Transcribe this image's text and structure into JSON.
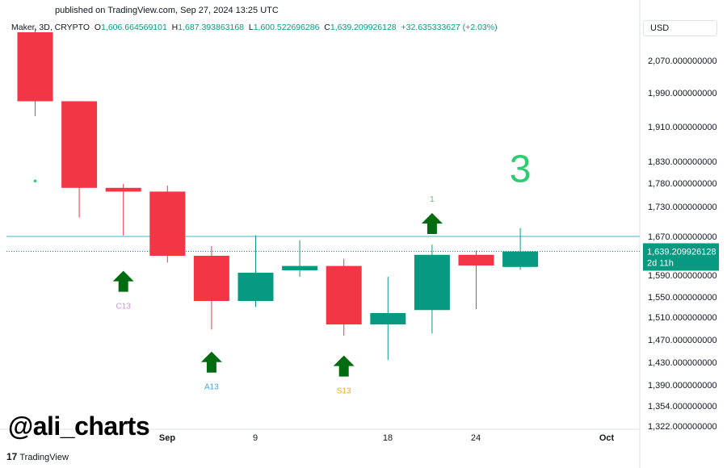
{
  "header": {
    "published": "published on TradingView.com, Sep 27, 2024 13:25 UTC"
  },
  "legend": {
    "symbol": "Maker, 3D, CRYPTO",
    "o_label": "O",
    "o": "1,606.664569101",
    "h_label": "H",
    "h": "1,687.393863168",
    "l_label": "L",
    "l": "1,600.522696286",
    "c_label": "C",
    "c": "1,639.209926128",
    "change": "+32.635333627 (+2.03%)"
  },
  "currency": "USD",
  "price_tag": {
    "price": "1,639.209926128",
    "countdown": "2d 11h",
    "color": "#089981"
  },
  "watermark": "@ali_charts",
  "logo": {
    "mark": "17",
    "text": "TradingView"
  },
  "colors": {
    "up": "#089981",
    "down": "#f23645",
    "arrow": "#006b0f",
    "hline": "#9fd8e6"
  },
  "chart_data": {
    "type": "candlestick",
    "x_ticks": [
      "Sep",
      "9",
      "18",
      "24",
      "Oct"
    ],
    "y_ticks": [
      "2,070.000000000",
      "1,990.000000000",
      "1,910.000000000",
      "1,830.000000000",
      "1,780.000000000",
      "1,730.000000000",
      "1,670.000000000",
      "1,590.000000000",
      "1,550.000000000",
      "1,510.000000000",
      "1,470.000000000",
      "1,430.000000000",
      "1,390.000000000",
      "1,354.000000000",
      "1,322.000000000"
    ],
    "horizontal_line": 1670,
    "last_price": 1639.21,
    "candles": [
      {
        "o": 2140,
        "h": 2150,
        "l": 1935,
        "c": 1970
      },
      {
        "o": 1970,
        "h": 1970,
        "l": 1708,
        "c": 1770
      },
      {
        "o": 1770,
        "h": 1778,
        "l": 1672,
        "c": 1762
      },
      {
        "o": 1762,
        "h": 1775,
        "l": 1616,
        "c": 1630
      },
      {
        "o": 1630,
        "h": 1650,
        "l": 1488,
        "c": 1542
      },
      {
        "o": 1542,
        "h": 1672,
        "l": 1530,
        "c": 1595
      },
      {
        "o": 1600,
        "h": 1662,
        "l": 1587,
        "c": 1609
      },
      {
        "o": 1609,
        "h": 1624,
        "l": 1477,
        "c": 1497
      },
      {
        "o": 1497,
        "h": 1587,
        "l": 1434,
        "c": 1518
      },
      {
        "o": 1524,
        "h": 1653,
        "l": 1481,
        "c": 1632
      },
      {
        "o": 1632,
        "h": 1641,
        "l": 1526,
        "c": 1610
      },
      {
        "o": 1607,
        "h": 1687,
        "l": 1601,
        "c": 1639
      }
    ],
    "markers": [
      {
        "candle": 0,
        "type": "dot",
        "price": 1785
      },
      {
        "candle": 2,
        "type": "arrow",
        "price": 1599,
        "label": "C13",
        "label_color": "#ce93d8"
      },
      {
        "candle": 4,
        "type": "arrow",
        "price": 1449,
        "label": "A13",
        "label_color": "#42a5f5"
      },
      {
        "candle": 7,
        "type": "arrow",
        "price": 1442,
        "label": "S13",
        "label_color": "#f9a825"
      },
      {
        "candle": 9,
        "type": "arrow",
        "price": 1717,
        "label": "1",
        "label_color": "#66bb6a"
      },
      {
        "candle": 11,
        "type": "big_label",
        "price": 1760,
        "label": "3",
        "label_color": "#2ecc71"
      }
    ]
  }
}
